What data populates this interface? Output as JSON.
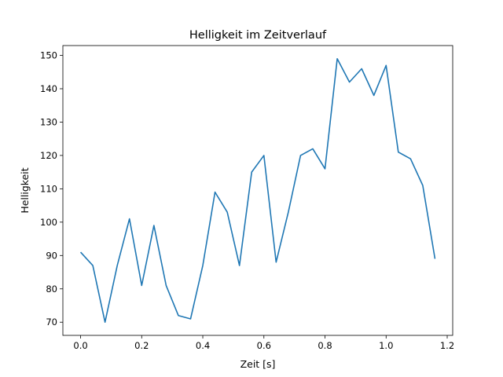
{
  "chart_data": {
    "type": "line",
    "title": "Helligkeit im Zeitverlauf",
    "xlabel": "Zeit [s]",
    "ylabel": "Helligkeit",
    "xlim": [
      -0.058,
      1.218
    ],
    "ylim": [
      66.05,
      152.95
    ],
    "xticks": [
      0.0,
      0.2,
      0.4,
      0.6,
      0.8,
      1.0,
      1.2
    ],
    "xtick_labels": [
      "0.0",
      "0.2",
      "0.4",
      "0.6",
      "0.8",
      "1.0",
      "1.2"
    ],
    "yticks": [
      70,
      80,
      90,
      100,
      110,
      120,
      130,
      140,
      150
    ],
    "ytick_labels": [
      "70",
      "80",
      "90",
      "100",
      "110",
      "120",
      "130",
      "140",
      "150"
    ],
    "grid": false,
    "series": [
      {
        "color": "#1f77b4",
        "x": [
          0.0,
          0.04,
          0.08,
          0.12,
          0.16,
          0.2,
          0.24,
          0.28,
          0.32,
          0.36,
          0.4,
          0.44,
          0.48,
          0.52,
          0.56,
          0.6,
          0.64,
          0.68,
          0.72,
          0.76,
          0.8,
          0.84,
          0.88,
          0.92,
          0.96,
          1.0,
          1.04,
          1.08,
          1.12,
          1.16
        ],
        "y": [
          91,
          87,
          70,
          87,
          101,
          81,
          99,
          81,
          72,
          71,
          87,
          109,
          103,
          87,
          115,
          120,
          88,
          103,
          120,
          122,
          116,
          149,
          142,
          146,
          138,
          147,
          121,
          119,
          111,
          89
        ]
      }
    ]
  }
}
